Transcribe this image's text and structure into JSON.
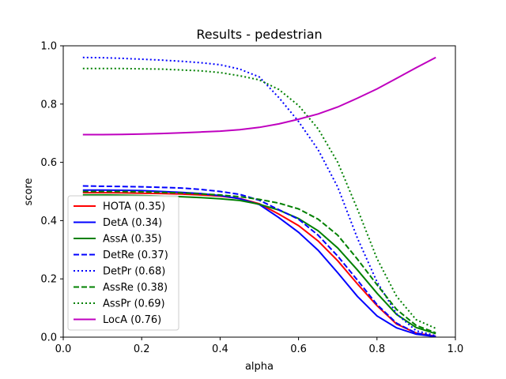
{
  "chart_data": {
    "type": "line",
    "title": "Results - pedestrian",
    "xlabel": "alpha",
    "ylabel": "score",
    "xlim": [
      0,
      1
    ],
    "ylim": [
      0,
      1
    ],
    "xticks": [
      "0.0",
      "0.2",
      "0.4",
      "0.6",
      "0.8",
      "1.0"
    ],
    "xtick_values": [
      0,
      0.2,
      0.4,
      0.6,
      0.8,
      1.0
    ],
    "yticks": [
      "0.0",
      "0.2",
      "0.4",
      "0.6",
      "0.8",
      "1.0"
    ],
    "ytick_values": [
      0,
      0.2,
      0.4,
      0.6,
      0.8,
      1.0
    ],
    "grid": false,
    "legend_position": "lower-left",
    "x": [
      0.05,
      0.1,
      0.15,
      0.2,
      0.25,
      0.3,
      0.35,
      0.4,
      0.45,
      0.5,
      0.55,
      0.6,
      0.65,
      0.7,
      0.75,
      0.8,
      0.85,
      0.9,
      0.95
    ],
    "series": [
      {
        "name": "HOTA (0.35)",
        "color": "#ff0000",
        "style": "solid",
        "values": [
          0.496,
          0.496,
          0.495,
          0.494,
          0.493,
          0.491,
          0.488,
          0.484,
          0.476,
          0.458,
          0.422,
          0.383,
          0.33,
          0.262,
          0.183,
          0.108,
          0.045,
          0.014,
          0.003
        ]
      },
      {
        "name": "DetA (0.34)",
        "color": "#0000ff",
        "style": "solid",
        "values": [
          0.505,
          0.505,
          0.504,
          0.503,
          0.5,
          0.497,
          0.493,
          0.486,
          0.475,
          0.455,
          0.41,
          0.36,
          0.298,
          0.221,
          0.14,
          0.073,
          0.032,
          0.01,
          0.002
        ]
      },
      {
        "name": "AssA (0.35)",
        "color": "#008000",
        "style": "solid",
        "values": [
          0.488,
          0.488,
          0.487,
          0.486,
          0.484,
          0.482,
          0.479,
          0.475,
          0.469,
          0.456,
          0.436,
          0.407,
          0.365,
          0.306,
          0.231,
          0.151,
          0.078,
          0.033,
          0.012
        ]
      },
      {
        "name": "DetRe (0.37)",
        "color": "#0000ff",
        "style": "dashed",
        "values": [
          0.519,
          0.518,
          0.517,
          0.516,
          0.514,
          0.512,
          0.507,
          0.5,
          0.49,
          0.47,
          0.437,
          0.405,
          0.35,
          0.278,
          0.196,
          0.112,
          0.048,
          0.014,
          0.002
        ]
      },
      {
        "name": "DetPr (0.68)",
        "color": "#0000ff",
        "style": "dotted",
        "values": [
          0.96,
          0.959,
          0.957,
          0.954,
          0.951,
          0.947,
          0.942,
          0.935,
          0.92,
          0.893,
          0.822,
          0.74,
          0.643,
          0.515,
          0.34,
          0.19,
          0.08,
          0.022,
          0.005
        ]
      },
      {
        "name": "AssRe (0.38)",
        "color": "#008000",
        "style": "dashed",
        "values": [
          0.5,
          0.5,
          0.5,
          0.499,
          0.497,
          0.495,
          0.492,
          0.488,
          0.482,
          0.473,
          0.46,
          0.44,
          0.405,
          0.35,
          0.268,
          0.18,
          0.095,
          0.04,
          0.015
        ]
      },
      {
        "name": "AssPr (0.69)",
        "color": "#008000",
        "style": "dotted",
        "values": [
          0.922,
          0.922,
          0.922,
          0.921,
          0.92,
          0.917,
          0.914,
          0.908,
          0.897,
          0.883,
          0.85,
          0.795,
          0.715,
          0.6,
          0.44,
          0.27,
          0.14,
          0.06,
          0.03
        ]
      },
      {
        "name": "LocA (0.76)",
        "color": "#bf00bf",
        "style": "solid",
        "values": [
          0.695,
          0.695,
          0.696,
          0.697,
          0.699,
          0.701,
          0.704,
          0.707,
          0.712,
          0.72,
          0.732,
          0.748,
          0.766,
          0.79,
          0.82,
          0.852,
          0.888,
          0.925,
          0.96
        ]
      }
    ]
  }
}
